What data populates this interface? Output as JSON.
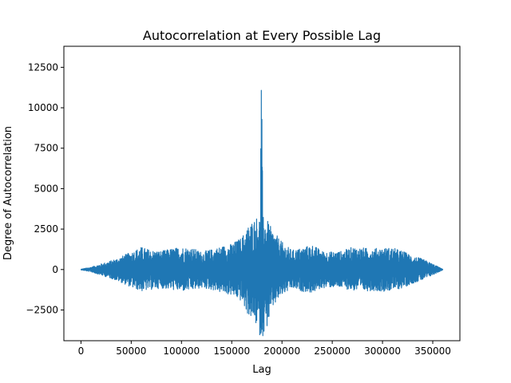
{
  "chart_data": {
    "type": "line",
    "title": "Autocorrelation at Every Possible Lag",
    "xlabel": "Lag",
    "ylabel": "Degree of Autocorrelation",
    "xlim": [
      -17000,
      377000
    ],
    "ylim": [
      -4400,
      13800
    ],
    "xticks": [
      0,
      50000,
      100000,
      150000,
      200000,
      250000,
      300000,
      350000
    ],
    "xtick_labels": [
      "0",
      "50000",
      "100000",
      "150000",
      "200000",
      "250000",
      "300000",
      "350000"
    ],
    "yticks": [
      -2500,
      0,
      2500,
      5000,
      7500,
      10000,
      12500
    ],
    "ytick_labels": [
      "−2500",
      "0",
      "2500",
      "5000",
      "7500",
      "10000",
      "12500"
    ],
    "grid": false,
    "legend": "none",
    "series": [
      {
        "color": "#1f77b4",
        "envelope": {
          "x": [
            0,
            10000,
            20000,
            30000,
            40000,
            50000,
            60000,
            70000,
            80000,
            90000,
            100000,
            110000,
            120000,
            130000,
            140000,
            150000,
            160000,
            165000,
            170000,
            175000,
            178000,
            179500,
            181000,
            185000,
            190000,
            195000,
            200000,
            210000,
            220000,
            230000,
            240000,
            250000,
            260000,
            270000,
            280000,
            290000,
            300000,
            310000,
            320000,
            330000,
            340000,
            350000,
            360000
          ],
          "high": [
            20,
            150,
            350,
            550,
            800,
            1100,
            1400,
            1200,
            1150,
            1300,
            1400,
            1350,
            1100,
            1250,
            1450,
            1600,
            2000,
            2600,
            3000,
            3300,
            3300,
            13000,
            3300,
            3100,
            2500,
            2100,
            1700,
            1200,
            1350,
            1550,
            1150,
            1100,
            1150,
            1400,
            1350,
            1300,
            1350,
            1350,
            1150,
            850,
            650,
            350,
            20
          ],
          "low": [
            -20,
            -150,
            -350,
            -550,
            -800,
            -1100,
            -1350,
            -1250,
            -1150,
            -1250,
            -1350,
            -1300,
            -1150,
            -1250,
            -1450,
            -1600,
            -2000,
            -2700,
            -3100,
            -3500,
            -4100,
            -4200,
            -4100,
            -3600,
            -2500,
            -2000,
            -1600,
            -1200,
            -1350,
            -1450,
            -1150,
            -1100,
            -1150,
            -1300,
            -1350,
            -1300,
            -1350,
            -1300,
            -1150,
            -850,
            -650,
            -350,
            -20
          ]
        }
      }
    ]
  }
}
